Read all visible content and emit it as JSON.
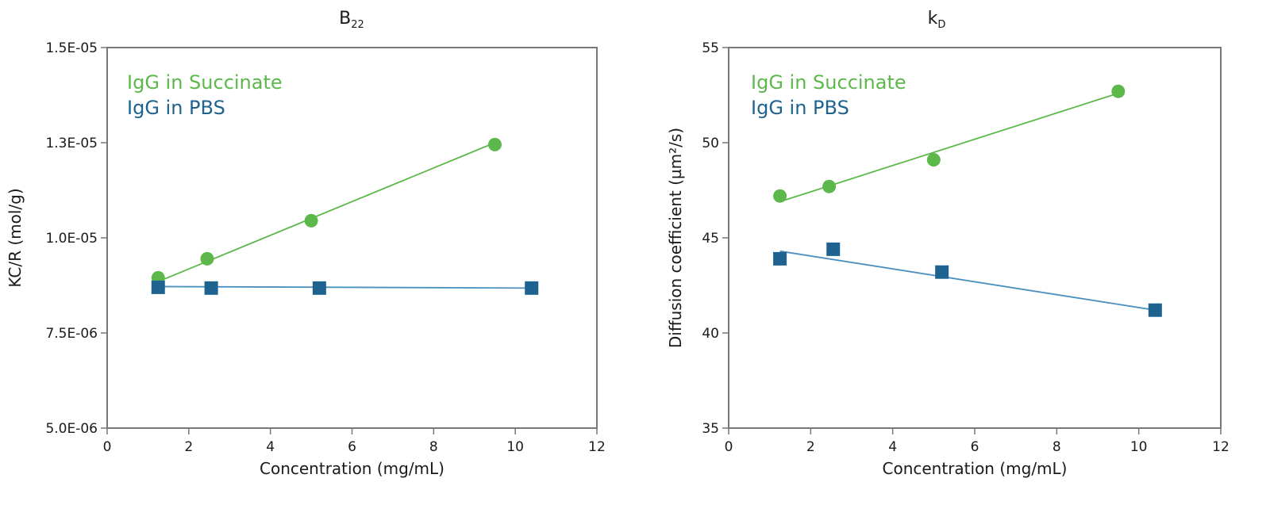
{
  "chart_data": [
    {
      "type": "scatter",
      "title": "B",
      "title_subscript": "22",
      "xlabel": "Concentration (mg/mL)",
      "ylabel": "KC/R (mol/g)",
      "xlim": [
        0,
        12
      ],
      "ylim": [
        5e-06,
        1.5e-05
      ],
      "x_ticks": [
        0,
        2,
        4,
        6,
        8,
        10,
        12
      ],
      "x_tick_labels": [
        "0",
        "2",
        "4",
        "6",
        "8",
        "10",
        "12"
      ],
      "y_ticks": [
        5e-06,
        7.5e-06,
        1e-05,
        1.25e-05,
        1.5e-05
      ],
      "y_tick_labels": [
        "5.0E-06",
        "7.5E-06",
        "1.0E-05",
        "1.3E-05",
        "1.5E-05"
      ],
      "grid": false,
      "legend_position": "top-left",
      "series": [
        {
          "name": "IgG in Succinate",
          "color": "#5cb84a",
          "marker": "circle",
          "x": [
            1.25,
            2.45,
            5.0,
            9.5
          ],
          "y": [
            8.95e-06,
            9.45e-06,
            1.045e-05,
            1.245e-05
          ],
          "fit": {
            "x": [
              1.25,
              9.5
            ],
            "y": [
              8.85e-06,
              1.25e-05
            ]
          }
        },
        {
          "name": "IgG in PBS",
          "color": "#1e6390",
          "line_color": "#4a8fbe",
          "marker": "square",
          "x": [
            1.25,
            2.55,
            5.2,
            10.4
          ],
          "y": [
            8.7e-06,
            8.68e-06,
            8.68e-06,
            8.68e-06
          ],
          "fit": {
            "x": [
              1.25,
              10.4
            ],
            "y": [
              8.72e-06,
              8.68e-06
            ]
          }
        }
      ]
    },
    {
      "type": "scatter",
      "title": "k",
      "title_subscript": "D",
      "xlabel": "Concentration (mg/mL)",
      "ylabel": "Diffusion coefficient (µm²/s)",
      "xlim": [
        0,
        12
      ],
      "ylim": [
        35,
        55
      ],
      "x_ticks": [
        0,
        2,
        4,
        6,
        8,
        10,
        12
      ],
      "x_tick_labels": [
        "0",
        "2",
        "4",
        "6",
        "8",
        "10",
        "12"
      ],
      "y_ticks": [
        35,
        40,
        45,
        50,
        55
      ],
      "y_tick_labels": [
        "35",
        "40",
        "45",
        "50",
        "55"
      ],
      "grid": false,
      "legend_position": "top-left",
      "series": [
        {
          "name": "IgG in Succinate",
          "color": "#5cb84a",
          "marker": "circle",
          "x": [
            1.25,
            2.45,
            5.0,
            9.5
          ],
          "y": [
            47.2,
            47.7,
            49.1,
            52.7
          ],
          "fit": {
            "x": [
              1.25,
              9.5
            ],
            "y": [
              46.9,
              52.6
            ]
          }
        },
        {
          "name": "IgG in PBS",
          "color": "#1e6390",
          "line_color": "#4a8fbe",
          "marker": "square",
          "x": [
            1.25,
            2.55,
            5.2,
            10.4
          ],
          "y": [
            43.9,
            44.4,
            43.2,
            41.2
          ],
          "fit": {
            "x": [
              1.25,
              10.4
            ],
            "y": [
              44.3,
              41.2
            ]
          }
        }
      ]
    }
  ]
}
